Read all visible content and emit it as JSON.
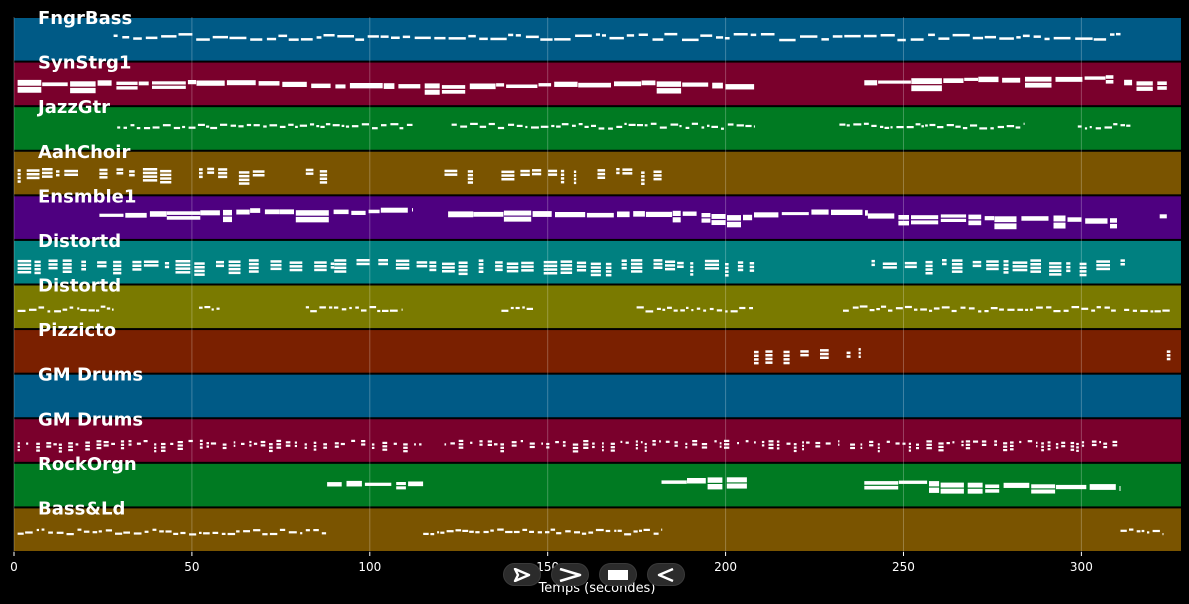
{
  "chart_data": {
    "type": "piano-roll",
    "xlabel": "Temps (secondes)",
    "xlim": [
      0,
      328
    ],
    "xticks": [
      0,
      50,
      100,
      150,
      200,
      250,
      300
    ],
    "xtick_labels": [
      "0",
      "50",
      "100",
      "150",
      "200",
      "250",
      "300"
    ],
    "grid": true,
    "tracks": [
      {
        "name": "FngrBass",
        "color": "#005a86",
        "segments": [
          [
            28,
            311
          ]
        ],
        "style": "bass",
        "level": 0.45
      },
      {
        "name": "SynStrg1",
        "color": "#7a002c",
        "segments": [
          [
            1,
            208
          ],
          [
            239,
            309
          ],
          [
            312,
            324
          ]
        ],
        "style": "block",
        "level": 0.5
      },
      {
        "name": "JazzGtr",
        "color": "#007a22",
        "segments": [
          [
            29,
            112
          ],
          [
            123,
            208
          ],
          [
            232,
            284
          ],
          [
            299,
            314
          ]
        ],
        "style": "dense",
        "level": 0.45
      },
      {
        "name": "AahChoir",
        "color": "#7a5400",
        "segments": [
          [
            1,
            18
          ],
          [
            24,
            45
          ],
          [
            52,
            73
          ],
          [
            82,
            88
          ],
          [
            121,
            129
          ],
          [
            137,
            158
          ],
          [
            164,
            182
          ]
        ],
        "style": "chord",
        "level": 0.45
      },
      {
        "name": "Ensmble1",
        "color": "#4e0080",
        "segments": [
          [
            24,
            112
          ],
          [
            122,
            208
          ],
          [
            208,
            240
          ],
          [
            240,
            310
          ],
          [
            322,
            324
          ]
        ],
        "style": "block",
        "level": 0.45
      },
      {
        "name": "Distortd",
        "color": "#008080",
        "segments": [
          [
            1,
            90
          ],
          [
            90,
            208
          ],
          [
            241,
            310
          ],
          [
            311,
            313
          ]
        ],
        "style": "chord",
        "level": 0.5
      },
      {
        "name": "Distortd",
        "color": "#7a7a00",
        "segments": [
          [
            1,
            28
          ],
          [
            52,
            58
          ],
          [
            82,
            109
          ],
          [
            137,
            146
          ],
          [
            175,
            208
          ],
          [
            233,
            310
          ],
          [
            312,
            325
          ]
        ],
        "style": "dense",
        "level": 0.55
      },
      {
        "name": "Pizzicto",
        "color": "#7a2000",
        "segments": [
          [
            208,
            218
          ],
          [
            221,
            231
          ],
          [
            234,
            238
          ],
          [
            324,
            325
          ]
        ],
        "style": "chord",
        "level": 0.5
      },
      {
        "name": "GM Drums",
        "color": "#005a86",
        "segments": [],
        "style": "dense",
        "level": 0.5
      },
      {
        "name": "GM Drums",
        "color": "#7a002c",
        "segments": [
          [
            1,
            115
          ],
          [
            121,
            208
          ],
          [
            208,
            232
          ],
          [
            235,
            311
          ]
        ],
        "style": "drum",
        "level": 0.55
      },
      {
        "name": "RockOrgn",
        "color": "#007a22",
        "segments": [
          [
            88,
            115
          ],
          [
            182,
            206
          ],
          [
            239,
            311
          ]
        ],
        "style": "block",
        "level": 0.45
      },
      {
        "name": "Bass&Ld",
        "color": "#7a5400",
        "segments": [
          [
            1,
            88
          ],
          [
            115,
            182
          ],
          [
            311,
            323
          ]
        ],
        "style": "dense",
        "level": 0.55
      }
    ]
  },
  "controls": {
    "play_icon": "play-icon",
    "forward_icon": "forward-icon",
    "stop_icon": "stop-icon",
    "rewind_icon": "rewind-icon"
  }
}
